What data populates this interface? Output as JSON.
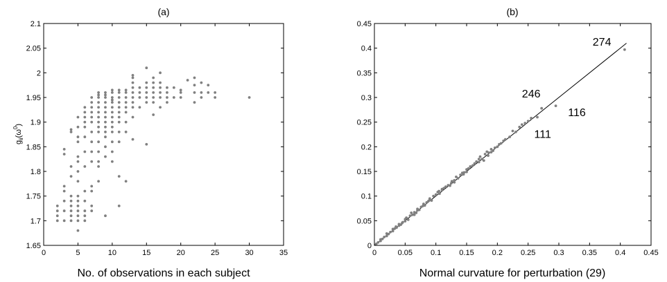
{
  "chart_data": [
    {
      "type": "scatter",
      "title": "(a)",
      "xlabel": "No. of observations in each subject",
      "ylabel": "g_ii(ω^0)",
      "xlim": [
        0,
        35
      ],
      "ylim": [
        1.65,
        2.1
      ],
      "xticks": [
        0,
        5,
        10,
        15,
        20,
        25,
        30,
        35
      ],
      "yticks": [
        1.65,
        1.7,
        1.75,
        1.8,
        1.85,
        1.9,
        1.95,
        2,
        2.05,
        2.1
      ],
      "xticklabels": [
        "0",
        "5",
        "10",
        "15",
        "20",
        "25",
        "30",
        "35"
      ],
      "yticklabels": [
        "1.65",
        "1.7",
        "1.75",
        "1.8",
        "1.85",
        "1.9",
        "1.95",
        "2",
        "2.05",
        "2.1"
      ],
      "grid": false,
      "point_color": "#808080",
      "points": [
        [
          2,
          1.7
        ],
        [
          2,
          1.71
        ],
        [
          2,
          1.72
        ],
        [
          2,
          1.73
        ],
        [
          3,
          1.7
        ],
        [
          3,
          1.72
        ],
        [
          3,
          1.74
        ],
        [
          3,
          1.76
        ],
        [
          3,
          1.77
        ],
        [
          3,
          1.835
        ],
        [
          3,
          1.845
        ],
        [
          4,
          1.7
        ],
        [
          4,
          1.71
        ],
        [
          4,
          1.72
        ],
        [
          4,
          1.73
        ],
        [
          4,
          1.74
        ],
        [
          4,
          1.75
        ],
        [
          4,
          1.79
        ],
        [
          4,
          1.81
        ],
        [
          4,
          1.88
        ],
        [
          4,
          1.885
        ],
        [
          5,
          1.68
        ],
        [
          5,
          1.7
        ],
        [
          5,
          1.71
        ],
        [
          5,
          1.72
        ],
        [
          5,
          1.73
        ],
        [
          5,
          1.74
        ],
        [
          5,
          1.75
        ],
        [
          5,
          1.78
        ],
        [
          5,
          1.8
        ],
        [
          5,
          1.82
        ],
        [
          5,
          1.83
        ],
        [
          5,
          1.86
        ],
        [
          5,
          1.87
        ],
        [
          5,
          1.89
        ],
        [
          5,
          1.91
        ],
        [
          6,
          1.7
        ],
        [
          6,
          1.71
        ],
        [
          6,
          1.72
        ],
        [
          6,
          1.74
        ],
        [
          6,
          1.76
        ],
        [
          6,
          1.81
        ],
        [
          6,
          1.84
        ],
        [
          6,
          1.87
        ],
        [
          6,
          1.89
        ],
        [
          6,
          1.9
        ],
        [
          6,
          1.91
        ],
        [
          6,
          1.92
        ],
        [
          6,
          1.93
        ],
        [
          7,
          1.72
        ],
        [
          7,
          1.73
        ],
        [
          7,
          1.76
        ],
        [
          7,
          1.77
        ],
        [
          7,
          1.82
        ],
        [
          7,
          1.84
        ],
        [
          7,
          1.86
        ],
        [
          7,
          1.88
        ],
        [
          7,
          1.9
        ],
        [
          7,
          1.91
        ],
        [
          7,
          1.92
        ],
        [
          7,
          1.93
        ],
        [
          7,
          1.94
        ],
        [
          7,
          1.95
        ],
        [
          8,
          1.78
        ],
        [
          8,
          1.81
        ],
        [
          8,
          1.82
        ],
        [
          8,
          1.84
        ],
        [
          8,
          1.86
        ],
        [
          8,
          1.88
        ],
        [
          8,
          1.89
        ],
        [
          8,
          1.9
        ],
        [
          8,
          1.91
        ],
        [
          8,
          1.92
        ],
        [
          8,
          1.93
        ],
        [
          8,
          1.94
        ],
        [
          8,
          1.95
        ],
        [
          8,
          1.955
        ],
        [
          8,
          1.96
        ],
        [
          9,
          1.71
        ],
        [
          9,
          1.83
        ],
        [
          9,
          1.85
        ],
        [
          9,
          1.87
        ],
        [
          9,
          1.88
        ],
        [
          9,
          1.89
        ],
        [
          9,
          1.9
        ],
        [
          9,
          1.91
        ],
        [
          9,
          1.92
        ],
        [
          9,
          1.93
        ],
        [
          9,
          1.94
        ],
        [
          9,
          1.95
        ],
        [
          9,
          1.955
        ],
        [
          9,
          1.96
        ],
        [
          10,
          1.82
        ],
        [
          10,
          1.84
        ],
        [
          10,
          1.86
        ],
        [
          10,
          1.88
        ],
        [
          10,
          1.89
        ],
        [
          10,
          1.9
        ],
        [
          10,
          1.91
        ],
        [
          10,
          1.92
        ],
        [
          10,
          1.93
        ],
        [
          10,
          1.94
        ],
        [
          10,
          1.945
        ],
        [
          10,
          1.95
        ],
        [
          10,
          1.96
        ],
        [
          10,
          1.965
        ],
        [
          11,
          1.73
        ],
        [
          11,
          1.79
        ],
        [
          11,
          1.86
        ],
        [
          11,
          1.88
        ],
        [
          11,
          1.9
        ],
        [
          11,
          1.91
        ],
        [
          11,
          1.92
        ],
        [
          11,
          1.93
        ],
        [
          11,
          1.94
        ],
        [
          11,
          1.95
        ],
        [
          11,
          1.96
        ],
        [
          11,
          1.965
        ],
        [
          12,
          1.78
        ],
        [
          12,
          1.88
        ],
        [
          12,
          1.9
        ],
        [
          12,
          1.92
        ],
        [
          12,
          1.93
        ],
        [
          12,
          1.94
        ],
        [
          12,
          1.95
        ],
        [
          12,
          1.96
        ],
        [
          12,
          1.965
        ],
        [
          13,
          1.865
        ],
        [
          13,
          1.91
        ],
        [
          13,
          1.93
        ],
        [
          13,
          1.94
        ],
        [
          13,
          1.95
        ],
        [
          13,
          1.96
        ],
        [
          13,
          1.97
        ],
        [
          13,
          1.98
        ],
        [
          13,
          1.99
        ],
        [
          13,
          1.995
        ],
        [
          14,
          1.93
        ],
        [
          14,
          1.95
        ],
        [
          14,
          1.96
        ],
        [
          14,
          1.97
        ],
        [
          15,
          1.855
        ],
        [
          15,
          1.94
        ],
        [
          15,
          1.95
        ],
        [
          15,
          1.96
        ],
        [
          15,
          1.97
        ],
        [
          15,
          1.98
        ],
        [
          15,
          2.01
        ],
        [
          16,
          1.915
        ],
        [
          16,
          1.94
        ],
        [
          16,
          1.95
        ],
        [
          16,
          1.96
        ],
        [
          16,
          1.97
        ],
        [
          16,
          1.98
        ],
        [
          16,
          1.99
        ],
        [
          17,
          1.93
        ],
        [
          17,
          1.95
        ],
        [
          17,
          1.96
        ],
        [
          17,
          1.97
        ],
        [
          17,
          1.98
        ],
        [
          17,
          2.0
        ],
        [
          18,
          1.94
        ],
        [
          18,
          1.95
        ],
        [
          18,
          1.96
        ],
        [
          18,
          1.97
        ],
        [
          19,
          1.95
        ],
        [
          19,
          1.97
        ],
        [
          20,
          1.95
        ],
        [
          20,
          1.96
        ],
        [
          20,
          1.965
        ],
        [
          21,
          1.985
        ],
        [
          22,
          1.94
        ],
        [
          22,
          1.96
        ],
        [
          22,
          1.975
        ],
        [
          22,
          1.99
        ],
        [
          23,
          1.95
        ],
        [
          23,
          1.96
        ],
        [
          23,
          1.98
        ],
        [
          24,
          1.96
        ],
        [
          24,
          1.975
        ],
        [
          25,
          1.95
        ],
        [
          25,
          1.96
        ],
        [
          30,
          1.95
        ]
      ]
    },
    {
      "type": "scatter",
      "title": "(b)",
      "xlabel": "Normal curvature for perturbation (29)",
      "ylabel": "",
      "xlim": [
        0,
        0.45
      ],
      "ylim": [
        0,
        0.45
      ],
      "xticks": [
        0,
        0.05,
        0.1,
        0.15,
        0.2,
        0.25,
        0.3,
        0.35,
        0.4,
        0.45
      ],
      "yticks": [
        0,
        0.05,
        0.1,
        0.15,
        0.2,
        0.25,
        0.3,
        0.35,
        0.4,
        0.45
      ],
      "xticklabels": [
        "0",
        "0.05",
        "0.1",
        "0.15",
        "0.2",
        "0.25",
        "0.3",
        "0.35",
        "0.4",
        "0.45"
      ],
      "yticklabels": [
        "0",
        "0.05",
        "0.1",
        "0.15",
        "0.2",
        "0.25",
        "0.3",
        "0.35",
        "0.4",
        "0.45"
      ],
      "grid": false,
      "point_color": "#808080",
      "reference_line": {
        "x": [
          0,
          0.41
        ],
        "y": [
          0,
          0.41
        ]
      },
      "points": [
        [
          0.003,
          0.003
        ],
        [
          0.006,
          0.006
        ],
        [
          0.01,
          0.009
        ],
        [
          0.013,
          0.013
        ],
        [
          0.016,
          0.017
        ],
        [
          0.02,
          0.019
        ],
        [
          0.023,
          0.023
        ],
        [
          0.026,
          0.027
        ],
        [
          0.03,
          0.029
        ],
        [
          0.033,
          0.034
        ],
        [
          0.036,
          0.036
        ],
        [
          0.04,
          0.04
        ],
        [
          0.043,
          0.042
        ],
        [
          0.046,
          0.047
        ],
        [
          0.05,
          0.049
        ],
        [
          0.052,
          0.056
        ],
        [
          0.055,
          0.052
        ],
        [
          0.058,
          0.06
        ],
        [
          0.06,
          0.066
        ],
        [
          0.062,
          0.062
        ],
        [
          0.065,
          0.067
        ],
        [
          0.068,
          0.066
        ],
        [
          0.07,
          0.074
        ],
        [
          0.073,
          0.072
        ],
        [
          0.076,
          0.078
        ],
        [
          0.079,
          0.08
        ],
        [
          0.082,
          0.081
        ],
        [
          0.085,
          0.087
        ],
        [
          0.088,
          0.09
        ],
        [
          0.09,
          0.095
        ],
        [
          0.093,
          0.091
        ],
        [
          0.096,
          0.1
        ],
        [
          0.1,
          0.103
        ],
        [
          0.103,
          0.108
        ],
        [
          0.106,
          0.105
        ],
        [
          0.11,
          0.114
        ],
        [
          0.113,
          0.116
        ],
        [
          0.116,
          0.119
        ],
        [
          0.12,
          0.122
        ],
        [
          0.123,
          0.121
        ],
        [
          0.126,
          0.13
        ],
        [
          0.13,
          0.132
        ],
        [
          0.133,
          0.139
        ],
        [
          0.136,
          0.136
        ],
        [
          0.14,
          0.143
        ],
        [
          0.143,
          0.147
        ],
        [
          0.146,
          0.148
        ],
        [
          0.15,
          0.154
        ],
        [
          0.153,
          0.156
        ],
        [
          0.156,
          0.16
        ],
        [
          0.16,
          0.162
        ],
        [
          0.163,
          0.166
        ],
        [
          0.166,
          0.17
        ],
        [
          0.17,
          0.175
        ],
        [
          0.172,
          0.18
        ],
        [
          0.175,
          0.175
        ],
        [
          0.178,
          0.172
        ],
        [
          0.18,
          0.185
        ],
        [
          0.183,
          0.19
        ],
        [
          0.186,
          0.188
        ],
        [
          0.19,
          0.195
        ],
        [
          0.193,
          0.192
        ],
        [
          0.196,
          0.198
        ],
        [
          0.2,
          0.2
        ],
        [
          0.203,
          0.205
        ],
        [
          0.206,
          0.207
        ],
        [
          0.21,
          0.212
        ],
        [
          0.213,
          0.215
        ],
        [
          0.22,
          0.22
        ],
        [
          0.225,
          0.232
        ],
        [
          0.23,
          0.23
        ],
        [
          0.236,
          0.24
        ],
        [
          0.24,
          0.245
        ],
        [
          0.245,
          0.248
        ],
        [
          0.25,
          0.252
        ],
        [
          0.255,
          0.258
        ],
        [
          0.265,
          0.26
        ],
        [
          0.272,
          0.278
        ],
        [
          0.295,
          0.283
        ],
        [
          0.407,
          0.397
        ],
        [
          0.01,
          0.012
        ],
        [
          0.02,
          0.024
        ],
        [
          0.03,
          0.033
        ],
        [
          0.04,
          0.043
        ],
        [
          0.05,
          0.053
        ],
        [
          0.07,
          0.071
        ],
        [
          0.09,
          0.092
        ],
        [
          0.11,
          0.112
        ],
        [
          0.13,
          0.128
        ],
        [
          0.15,
          0.149
        ],
        [
          0.17,
          0.169
        ],
        [
          0.19,
          0.189
        ],
        [
          0.125,
          0.126
        ],
        [
          0.145,
          0.144
        ],
        [
          0.185,
          0.182
        ],
        [
          0.105,
          0.11
        ],
        [
          0.065,
          0.062
        ],
        [
          0.035,
          0.038
        ],
        [
          0.045,
          0.045
        ],
        [
          0.08,
          0.084
        ]
      ],
      "annotations": [
        {
          "text": "274",
          "x": 0.355,
          "y": 0.405
        },
        {
          "text": "246",
          "x": 0.24,
          "y": 0.3
        },
        {
          "text": "116",
          "x": 0.315,
          "y": 0.262
        },
        {
          "text": "111",
          "x": 0.26,
          "y": 0.218
        }
      ]
    }
  ]
}
